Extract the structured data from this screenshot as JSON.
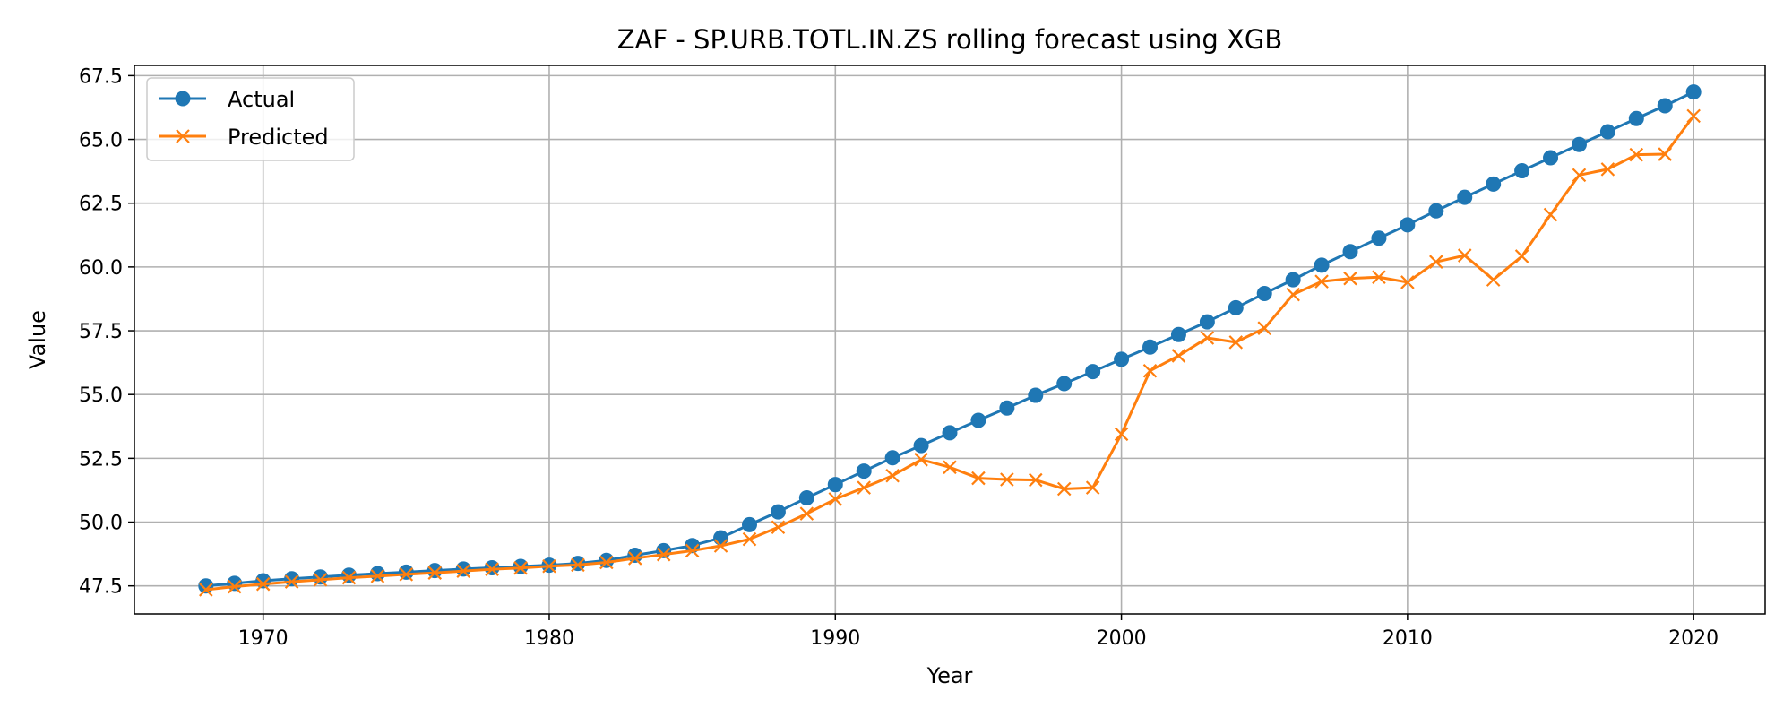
{
  "chart_data": {
    "type": "line",
    "title": "ZAF - SP.URB.TOTL.IN.ZS rolling forecast using XGB",
    "xlabel": "Year",
    "ylabel": "Value",
    "xlim": [
      1965.5,
      2022.5
    ],
    "ylim": [
      46.4,
      67.9
    ],
    "xticks": [
      1970,
      1980,
      1990,
      2000,
      2010,
      2020
    ],
    "yticks": [
      47.5,
      50.0,
      52.5,
      55.0,
      57.5,
      60.0,
      62.5,
      65.0,
      67.5
    ],
    "grid": true,
    "legend_position": "top-left",
    "x": [
      1968,
      1969,
      1970,
      1971,
      1972,
      1973,
      1974,
      1975,
      1976,
      1977,
      1978,
      1979,
      1980,
      1981,
      1982,
      1983,
      1984,
      1985,
      1986,
      1987,
      1988,
      1989,
      1990,
      1991,
      1992,
      1993,
      1994,
      1995,
      1996,
      1997,
      1998,
      1999,
      2000,
      2001,
      2002,
      2003,
      2004,
      2005,
      2006,
      2007,
      2008,
      2009,
      2010,
      2011,
      2012,
      2013,
      2014,
      2015,
      2016,
      2017,
      2018,
      2019,
      2020
    ],
    "series": [
      {
        "name": "Actual",
        "color": "#1f77b4",
        "marker": "circle",
        "values": [
          47.5,
          47.6,
          47.7,
          47.78,
          47.85,
          47.92,
          47.98,
          48.04,
          48.1,
          48.16,
          48.21,
          48.26,
          48.31,
          48.38,
          48.5,
          48.7,
          48.88,
          49.08,
          49.38,
          49.9,
          50.4,
          50.95,
          51.47,
          52.0,
          52.52,
          53.0,
          53.5,
          53.99,
          54.47,
          54.97,
          55.43,
          55.9,
          56.38,
          56.86,
          57.35,
          57.85,
          58.4,
          58.96,
          59.5,
          60.07,
          60.6,
          61.13,
          61.65,
          62.2,
          62.73,
          63.25,
          63.77,
          64.28,
          64.8,
          65.3,
          65.82,
          66.32,
          66.86
        ]
      },
      {
        "name": "Predicted",
        "color": "#ff7f0e",
        "marker": "x",
        "values": [
          47.35,
          47.47,
          47.57,
          47.66,
          47.74,
          47.82,
          47.88,
          47.95,
          48.01,
          48.08,
          48.15,
          48.2,
          48.27,
          48.32,
          48.42,
          48.58,
          48.73,
          48.88,
          49.07,
          49.33,
          49.8,
          50.33,
          50.9,
          51.35,
          51.82,
          52.45,
          52.15,
          51.72,
          51.67,
          51.65,
          51.3,
          51.35,
          53.45,
          55.93,
          56.52,
          57.22,
          57.05,
          57.6,
          58.92,
          59.43,
          59.55,
          59.6,
          59.4,
          60.2,
          60.45,
          59.5,
          60.42,
          62.05,
          63.6,
          63.83,
          64.4,
          64.42,
          65.92
        ]
      }
    ]
  }
}
